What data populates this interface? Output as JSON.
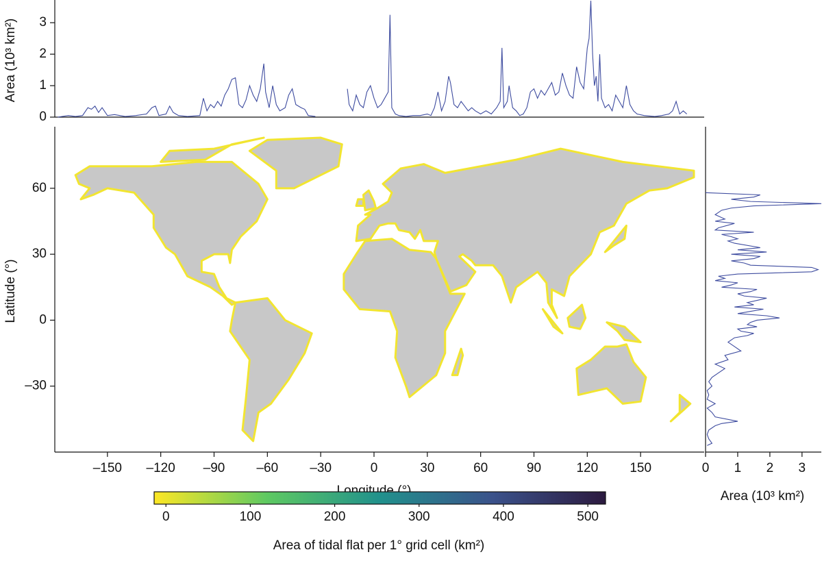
{
  "chart_data": [
    {
      "type": "map",
      "xlabel": "Longitude (°)",
      "ylabel": "Latitude (°)",
      "xlim": [
        -180,
        180
      ],
      "ylim": [
        -60,
        88
      ],
      "xticks": [
        {
          "value": -150,
          "label": "–150"
        },
        {
          "value": -120,
          "label": "–120"
        },
        {
          "value": -90,
          "label": "–90"
        },
        {
          "value": -60,
          "label": "–60"
        },
        {
          "value": -30,
          "label": "–30"
        },
        0,
        30,
        60,
        90,
        120,
        150
      ],
      "yticks": [
        {
          "value": -30,
          "label": "–30"
        },
        0,
        30,
        60
      ],
      "colorbar": {
        "label": "Area of tidal flat per 1° grid cell (km²)",
        "lim": [
          -14,
          521
        ],
        "ticks": [
          0,
          100,
          200,
          300,
          400,
          500
        ],
        "colors": [
          "#fde725",
          "#5ec962",
          "#21918c",
          "#3b528b",
          "#2c1a3f"
        ]
      }
    },
    {
      "type": "line",
      "ylabel": "Area (10³ km²)",
      "xlim": [
        -180,
        180
      ],
      "ylim": [
        0,
        3.7
      ],
      "yticks": [
        0,
        1,
        2,
        3
      ],
      "x": [
        -178,
        -172,
        -168,
        -164,
        -161,
        -159,
        -157,
        -155,
        -153,
        -150,
        -146,
        -140,
        -134,
        -128,
        -125,
        -123,
        -121,
        -117,
        -115,
        -113,
        -110,
        -105,
        -98,
        -96,
        -94,
        -92,
        -90,
        -88,
        -86,
        -84,
        -82,
        -80,
        -78,
        -76,
        -74,
        -72,
        -70,
        -68,
        -66,
        -64,
        -62,
        -61,
        -59,
        -57,
        -55,
        -53,
        -50,
        -48,
        -46,
        -44,
        -41,
        -39,
        -37,
        -33,
        -25,
        -15,
        -14,
        -12,
        -10,
        -8,
        -6,
        -4,
        -2,
        0,
        2,
        4,
        6,
        8,
        9,
        10,
        12,
        14,
        18,
        22,
        26,
        30,
        32,
        34,
        36,
        38,
        40,
        42,
        43,
        45,
        47,
        49,
        51,
        53,
        55,
        57,
        60,
        63,
        66,
        69,
        71,
        72,
        73,
        75,
        76,
        78,
        80,
        82,
        84,
        86,
        88,
        90,
        92,
        94,
        96,
        98,
        100,
        102,
        104,
        106,
        108,
        110,
        112,
        114,
        116,
        118,
        120,
        121,
        122,
        123,
        124,
        125,
        126,
        127,
        128,
        130,
        132,
        134,
        136,
        138,
        140,
        142,
        144,
        146,
        148,
        152,
        158,
        162,
        166,
        168,
        170,
        172,
        174,
        176
      ],
      "series": [
        {
          "color": "#3d4b9f",
          "values": [
            0,
            0.05,
            0.02,
            0.05,
            0.3,
            0.25,
            0.35,
            0.15,
            0.3,
            0.05,
            0.08,
            0.02,
            0.05,
            0.1,
            0.3,
            0.35,
            0.05,
            0.1,
            0.35,
            0.15,
            0.05,
            0.02,
            0.05,
            0.6,
            0.2,
            0.4,
            0.3,
            0.5,
            0.35,
            0.7,
            0.9,
            1.2,
            1.25,
            0.4,
            0.3,
            0.55,
            1.0,
            0.7,
            0.5,
            0.9,
            1.7,
            0.8,
            0.3,
            1.0,
            0.4,
            0.2,
            0.3,
            0.7,
            0.9,
            0.4,
            0.3,
            0.25,
            0.05,
            0.02,
            null,
            0.9,
            0.4,
            0.2,
            0.7,
            0.4,
            0.3,
            0.8,
            1.0,
            0.6,
            0.3,
            0.4,
            0.6,
            0.8,
            3.25,
            0.3,
            0.1,
            0.05,
            0.02,
            0.05,
            0.05,
            0.1,
            0.05,
            0.3,
            0.8,
            0.2,
            0.5,
            1.3,
            1.1,
            0.4,
            0.3,
            0.5,
            0.35,
            0.2,
            0.3,
            0.2,
            0.1,
            0.2,
            0.1,
            0.3,
            0.5,
            2.2,
            0.3,
            0.5,
            1.0,
            0.3,
            0.2,
            0.05,
            0.1,
            0.3,
            0.8,
            0.9,
            0.6,
            0.85,
            0.7,
            0.9,
            1.1,
            0.7,
            0.8,
            1.4,
            1.0,
            0.7,
            0.6,
            1.6,
            1.1,
            0.9,
            2.2,
            2.5,
            3.7,
            2.0,
            1.0,
            1.3,
            0.5,
            2.0,
            0.6,
            0.3,
            0.4,
            0.2,
            0.7,
            0.5,
            0.3,
            1.0,
            0.4,
            0.2,
            0.1,
            0.05,
            0.02,
            0.05,
            0.1,
            0.2,
            0.5,
            0.1,
            0.2,
            0.1
          ]
        }
      ]
    },
    {
      "type": "line",
      "orientation": "horizontal",
      "xlabel": "Area (10³ km²)",
      "xlim": [
        0,
        3.6
      ],
      "xticks": [
        0,
        1,
        2,
        3
      ],
      "ylim": [
        -60,
        88
      ],
      "y": [
        58,
        57,
        56,
        55,
        54,
        53,
        52,
        51,
        50,
        48,
        46,
        45,
        44,
        42,
        41,
        40,
        39,
        38,
        37,
        36,
        35,
        33,
        32,
        31,
        30,
        29,
        28,
        27,
        26,
        25,
        24,
        23,
        22,
        21,
        20,
        19,
        18,
        17,
        16,
        15,
        14,
        13,
        12,
        11,
        10,
        9,
        8,
        7,
        6,
        5,
        4,
        3,
        2,
        1,
        0,
        -1,
        -2,
        -3,
        -4,
        -5,
        -6,
        -7,
        -8,
        -10,
        -12,
        -14,
        -16,
        -18,
        -20,
        -22,
        -24,
        -26,
        -28,
        -30,
        -32,
        -34,
        -36,
        -38,
        -40,
        -42,
        -44,
        -46,
        -47,
        -48,
        -50,
        -52,
        -54,
        -56,
        -57
      ],
      "series": [
        {
          "color": "#3d4b9f",
          "values": [
            0,
            1.7,
            1.5,
            0.8,
            1.4,
            3.6,
            1.5,
            0.8,
            0.5,
            0.3,
            0.6,
            0.3,
            0.9,
            0.4,
            0.3,
            1.5,
            0.5,
            0.8,
            1.0,
            0.7,
            0.9,
            1.7,
            1.0,
            1.9,
            0.8,
            1.7,
            1.5,
            0.8,
            1.2,
            1.4,
            3.3,
            3.5,
            3.3,
            1.0,
            0.4,
            0.6,
            0.3,
            1.0,
            0.8,
            0.5,
            1.6,
            1.4,
            1.0,
            1.2,
            1.9,
            1.6,
            1.3,
            1.5,
            0.9,
            1.8,
            1.4,
            1.0,
            1.9,
            2.3,
            1.6,
            1.4,
            1.3,
            1.6,
            1.0,
            1.1,
            1.5,
            1.3,
            0.9,
            0.7,
            0.9,
            1.1,
            0.6,
            0.7,
            0.3,
            0.6,
            0.4,
            0.2,
            0.1,
            0.2,
            0.05,
            0.1,
            0.05,
            0.3,
            0.05,
            0.2,
            0.3,
            1.0,
            0.5,
            0.3,
            0.1,
            0.05,
            0.1,
            0.2,
            0.05
          ]
        }
      ]
    }
  ]
}
